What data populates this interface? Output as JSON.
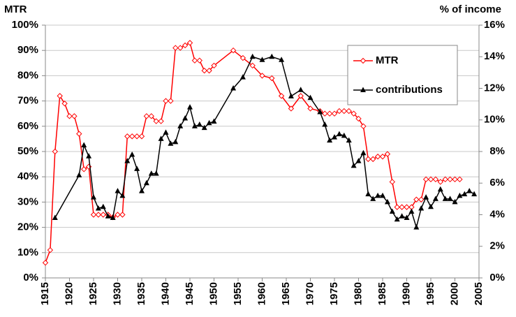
{
  "chart_data": {
    "type": "line",
    "y_label": "MTR",
    "y2_label": "% of  income",
    "xlim": [
      1915,
      2005
    ],
    "xticks": [
      1915,
      1920,
      1925,
      1930,
      1935,
      1940,
      1945,
      1950,
      1955,
      1960,
      1965,
      1970,
      1975,
      1980,
      1985,
      1990,
      1995,
      2000,
      2005
    ],
    "ylim": [
      0,
      100
    ],
    "yticks": [
      {
        "value": 0,
        "label": "0%"
      },
      {
        "value": 10,
        "label": "10%"
      },
      {
        "value": 20,
        "label": "20%"
      },
      {
        "value": 30,
        "label": "30%"
      },
      {
        "value": 40,
        "label": "40%"
      },
      {
        "value": 50,
        "label": "50%"
      },
      {
        "value": 60,
        "label": "60%"
      },
      {
        "value": 70,
        "label": "70%"
      },
      {
        "value": 80,
        "label": "80%"
      },
      {
        "value": 90,
        "label": "90%"
      },
      {
        "value": 100,
        "label": "100%"
      }
    ],
    "y2lim": [
      0,
      16
    ],
    "y2ticks": [
      {
        "value": 0,
        "label": "0%"
      },
      {
        "value": 2,
        "label": "2%"
      },
      {
        "value": 4,
        "label": "4%"
      },
      {
        "value": 6,
        "label": "6%"
      },
      {
        "value": 8,
        "label": "8%"
      },
      {
        "value": 10,
        "label": "10%"
      },
      {
        "value": 12,
        "label": "12%"
      },
      {
        "value": 14,
        "label": "14%"
      },
      {
        "value": 16,
        "label": "16%"
      }
    ],
    "grid": true,
    "legend": "upper right",
    "series": [
      {
        "name": "MTR",
        "color": "#ff0000",
        "marker": "diamond",
        "x": [
          1915,
          1916,
          1917,
          1918,
          1919,
          1920,
          1921,
          1922,
          1923,
          1924,
          1925,
          1926,
          1927,
          1928,
          1929,
          1930,
          1931,
          1932,
          1933,
          1934,
          1935,
          1936,
          1937,
          1938,
          1939,
          1940,
          1941,
          1942,
          1943,
          1944,
          1945,
          1946,
          1947,
          1948,
          1949,
          1950,
          1954,
          1956,
          1958,
          1960,
          1962,
          1964,
          1966,
          1968,
          1970,
          1972,
          1973,
          1974,
          1975,
          1976,
          1977,
          1978,
          1979,
          1980,
          1981,
          1982,
          1983,
          1984,
          1985,
          1986,
          1987,
          1988,
          1989,
          1990,
          1991,
          1992,
          1993,
          1994,
          1995,
          1996,
          1997,
          1998,
          1999,
          2000,
          2001
        ],
        "values": [
          6,
          11,
          50,
          72,
          69,
          64,
          64,
          57,
          43,
          44,
          25,
          25,
          25,
          25,
          24,
          25,
          25,
          56,
          56,
          56,
          56,
          64,
          64,
          62,
          62,
          70,
          70,
          91,
          91,
          92,
          93,
          86,
          86,
          82,
          82,
          84,
          90,
          87,
          84,
          80,
          79,
          72,
          67,
          72,
          67,
          66,
          65,
          65,
          65,
          66,
          66,
          66,
          65,
          63,
          60,
          47,
          47,
          48,
          48,
          49,
          38,
          28,
          28,
          28,
          28,
          31,
          31,
          39,
          39,
          39,
          38,
          39,
          39,
          39,
          39
        ]
      },
      {
        "name": "contributions",
        "color": "#000000",
        "marker": "triangle",
        "axis": "y2",
        "x": [
          1917,
          1922,
          1923,
          1924,
          1925,
          1926,
          1927,
          1928,
          1929,
          1930,
          1931,
          1932,
          1933,
          1934,
          1935,
          1936,
          1937,
          1938,
          1939,
          1940,
          1941,
          1942,
          1943,
          1944,
          1945,
          1946,
          1947,
          1948,
          1949,
          1950,
          1954,
          1956,
          1958,
          1960,
          1962,
          1964,
          1966,
          1968,
          1970,
          1972,
          1973,
          1974,
          1975,
          1976,
          1977,
          1978,
          1979,
          1980,
          1981,
          1982,
          1983,
          1984,
          1985,
          1986,
          1987,
          1988,
          1989,
          1990,
          1991,
          1992,
          1993,
          1994,
          1995,
          1996,
          1997,
          1998,
          1999,
          2000,
          2001,
          2002,
          2003,
          2004
        ],
        "values": [
          3.8,
          6.5,
          8.4,
          7.7,
          5.1,
          4.4,
          4.5,
          3.9,
          3.8,
          5.5,
          5.2,
          7.4,
          7.8,
          6.9,
          5.5,
          6.0,
          6.6,
          6.6,
          8.8,
          9.2,
          8.5,
          8.6,
          9.6,
          10.1,
          10.8,
          9.6,
          9.7,
          9.5,
          9.8,
          9.9,
          12.0,
          12.7,
          14.0,
          13.8,
          14.0,
          13.8,
          11.5,
          11.9,
          11.4,
          10.5,
          9.7,
          8.7,
          8.9,
          9.1,
          9.0,
          8.7,
          7.1,
          7.4,
          7.9,
          5.3,
          5.0,
          5.2,
          5.2,
          4.8,
          4.2,
          3.7,
          3.9,
          3.8,
          4.2,
          3.2,
          4.4,
          5.1,
          4.5,
          5.0,
          5.6,
          5.0,
          5.0,
          4.8,
          5.2,
          5.3,
          5.5,
          5.3
        ]
      }
    ]
  }
}
